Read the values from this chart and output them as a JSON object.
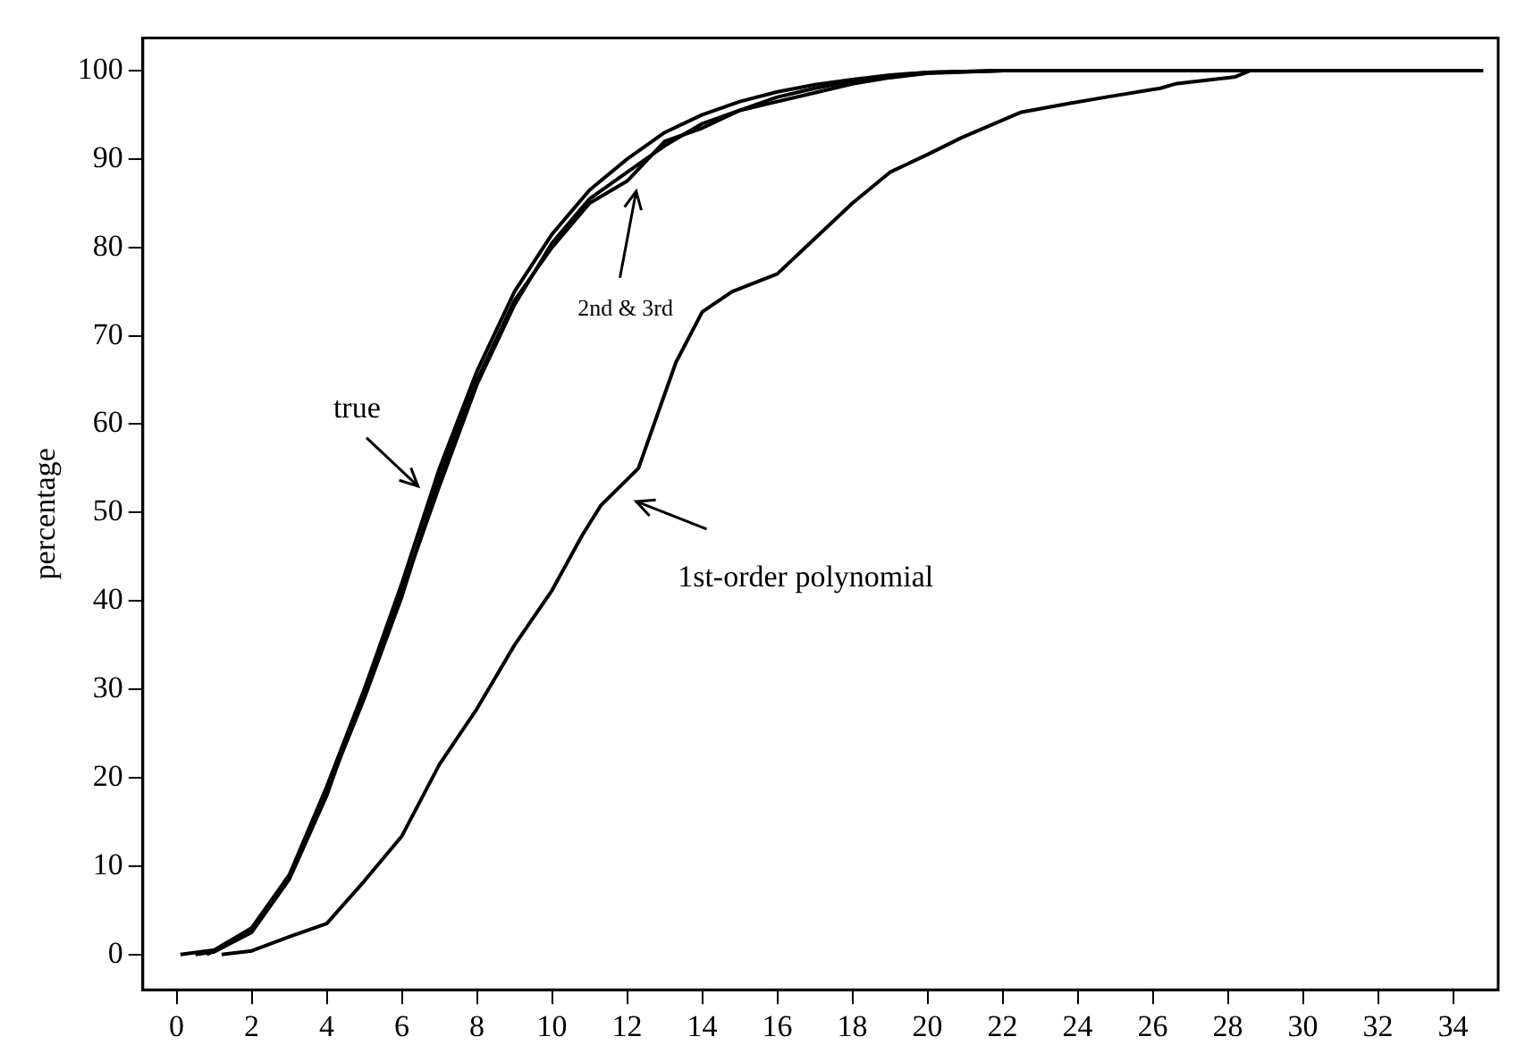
{
  "chart_data": {
    "type": "line",
    "ylabel": "percentage",
    "xlim": [
      -0.9,
      35.2
    ],
    "ylim": [
      -4,
      103.7
    ],
    "xticks": [
      0,
      2,
      4,
      6,
      8,
      10,
      12,
      14,
      16,
      18,
      20,
      22,
      24,
      26,
      28,
      30,
      32,
      34
    ],
    "yticks": [
      0,
      10,
      20,
      30,
      40,
      50,
      60,
      70,
      80,
      90,
      100
    ],
    "grid": false,
    "legend": false,
    "marker": "none",
    "line_style": "solid",
    "series": [
      {
        "color": "#000000",
        "x": [
          0.1,
          1,
          2,
          3,
          4,
          5,
          6,
          7,
          8,
          9,
          10,
          11,
          12,
          13,
          14,
          15,
          16,
          17,
          18,
          19,
          20,
          22,
          34.8
        ],
        "values": [
          0,
          0.5,
          3,
          9,
          19,
          30,
          42,
          55,
          66,
          75,
          81.5,
          86.5,
          90,
          93,
          95,
          96.5,
          97.6,
          98.4,
          99,
          99.5,
          99.8,
          100,
          100
        ]
      },
      {
        "color": "#000000",
        "x": [
          0.5,
          1,
          2,
          3,
          4,
          5,
          6,
          7,
          8,
          9,
          10,
          11,
          12,
          13,
          14,
          15,
          16,
          17,
          18,
          19,
          20,
          22,
          33.8
        ],
        "values": [
          0,
          0.3,
          2.5,
          8.5,
          18,
          30,
          41,
          53,
          64.5,
          73.5,
          80.5,
          85.5,
          88.5,
          91.5,
          94,
          95.5,
          97,
          98,
          98.8,
          99.4,
          99.8,
          100,
          100
        ]
      },
      {
        "color": "#000000",
        "x": [
          0.8,
          1,
          2,
          3,
          4,
          5,
          6,
          7,
          8,
          9,
          10,
          11,
          12,
          13,
          14,
          15,
          16,
          17,
          18,
          19,
          20,
          22,
          32.8
        ],
        "values": [
          0,
          0.4,
          2.8,
          8.8,
          18.5,
          29,
          40.5,
          54,
          65,
          74,
          80,
          85,
          87.5,
          92,
          93.5,
          95.5,
          96.5,
          97.5,
          98.5,
          99.2,
          99.7,
          100,
          100
        ]
      },
      {
        "color": "#000000",
        "x": [
          1.2,
          2,
          3,
          4,
          5,
          6,
          7,
          8,
          9,
          10,
          10.8,
          11.3,
          12.3,
          13.3,
          14,
          14.8,
          16,
          17,
          18,
          19,
          20,
          20.9,
          22.5,
          23.8,
          24.9,
          26.2,
          26.6,
          28.2,
          28.6,
          34.8
        ],
        "values": [
          0,
          0.4,
          2,
          3.5,
          8.3,
          13.4,
          21.5,
          27.8,
          35,
          41.2,
          47.4,
          50.8,
          55,
          67,
          72.7,
          75,
          77,
          81,
          85,
          88.5,
          90.5,
          92.4,
          95.3,
          96.3,
          97.1,
          98,
          98.5,
          99.3,
          100,
          100
        ]
      }
    ],
    "annotations": [
      "true",
      "2nd & 3rd",
      "1st-order polynomial"
    ]
  }
}
